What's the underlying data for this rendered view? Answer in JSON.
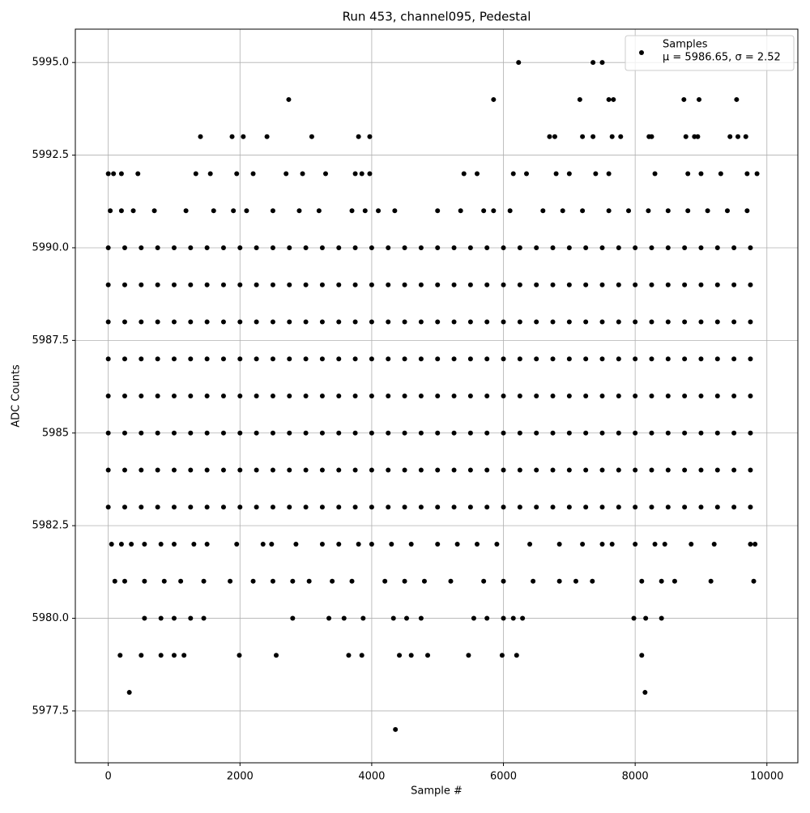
{
  "chart_data": {
    "type": "scatter",
    "title": "Run 453, channel095, Pedestal",
    "xlabel": "Sample #",
    "ylabel": "ADC Counts",
    "annotation": "μ = 5986.65, σ = 2.52",
    "xlim": [
      -500,
      10470
    ],
    "ylim": [
      5976.1,
      5995.9
    ],
    "xticks": [
      0,
      2000,
      4000,
      6000,
      8000,
      10000
    ],
    "yticks": [
      5977.5,
      {
        "value": 5980,
        "label": "5980.0"
      },
      5982.5,
      5985,
      {
        "value": 5987.5,
        "label": "5987.5"
      },
      {
        "value": 5990,
        "label": "5990.0"
      },
      5992.5,
      {
        "value": 5995,
        "label": "5995.0"
      }
    ],
    "grid": true,
    "legend": "upper right",
    "series": [
      {
        "name": "Samples",
        "color": "#000000",
        "x": [
          0,
          250,
          500,
          750,
          1000,
          1250,
          1500,
          1750,
          2000,
          2250,
          2500,
          2750,
          3000,
          3250,
          3500,
          3750,
          4000,
          4250,
          4500,
          4750,
          5000,
          5250,
          5500,
          5750,
          6000,
          6250,
          6500,
          6750,
          7000,
          7250,
          7500,
          7750,
          8000,
          8250,
          8500,
          8750,
          9000,
          9250,
          9500,
          9750,
          0,
          250,
          500,
          750,
          1000,
          1250,
          1500,
          1750,
          2000,
          2250,
          2500,
          2750,
          3000,
          3250,
          3500,
          3750,
          4000,
          4250,
          4500,
          4750,
          5000,
          5250,
          5500,
          5750,
          6000,
          6250,
          6500,
          6750,
          7000,
          7250,
          7500,
          7750,
          8000,
          8250,
          8500,
          8750,
          9000,
          9250,
          9500,
          9750,
          0,
          250,
          500,
          750,
          1000,
          1250,
          1500,
          1750,
          2000,
          2250,
          2500,
          2750,
          3000,
          3250,
          3500,
          3750,
          4000,
          4250,
          4500,
          4750,
          5000,
          5250,
          5500,
          5750,
          6000,
          6250,
          6500,
          6750,
          7000,
          7250,
          7500,
          7750,
          8000,
          8250,
          8500,
          8750,
          9000,
          9250,
          9500,
          9750,
          0,
          250,
          500,
          750,
          1000,
          1250,
          1500,
          1750,
          2000,
          2250,
          2500,
          2750,
          3000,
          3250,
          3500,
          3750,
          4000,
          4250,
          4500,
          4750,
          5000,
          5250,
          5500,
          5750,
          6000,
          6250,
          6500,
          6750,
          7000,
          7250,
          7500,
          7750,
          8000,
          8250,
          8500,
          8750,
          9000,
          9250,
          9500,
          9750,
          0,
          250,
          500,
          750,
          1000,
          1250,
          1500,
          1750,
          2000,
          2250,
          2500,
          2750,
          3000,
          3250,
          3500,
          3750,
          4000,
          4250,
          4500,
          4750,
          5000,
          5250,
          5500,
          5750,
          6000,
          6250,
          6500,
          6750,
          7000,
          7250,
          7500,
          7750,
          8000,
          8250,
          8500,
          8750,
          9000,
          9250,
          9500,
          9750,
          0,
          250,
          500,
          750,
          1000,
          1250,
          1500,
          1750,
          2000,
          2250,
          2500,
          2750,
          3000,
          3250,
          3500,
          3750,
          4000,
          4250,
          4500,
          4750,
          5000,
          5250,
          5500,
          5750,
          6000,
          6250,
          6500,
          6750,
          7000,
          7250,
          7500,
          7750,
          8000,
          8250,
          8500,
          8750,
          9000,
          9250,
          9500,
          9750,
          0,
          250,
          500,
          750,
          1000,
          1250,
          1500,
          1750,
          2000,
          2250,
          2500,
          2750,
          3000,
          3250,
          3500,
          3750,
          4000,
          4250,
          4500,
          4750,
          5000,
          5250,
          5500,
          5750,
          6000,
          6250,
          6500,
          6750,
          7000,
          7250,
          7500,
          7750,
          8000,
          8250,
          8500,
          8750,
          9000,
          9250,
          9500,
          9750,
          0,
          250,
          500,
          750,
          1000,
          1250,
          1500,
          1750,
          2000,
          2250,
          2500,
          2750,
          3000,
          3250,
          3500,
          3750,
          4000,
          4250,
          4500,
          4750,
          5000,
          5250,
          5500,
          5750,
          6000,
          6250,
          6500,
          6750,
          7000,
          7250,
          7500,
          7750,
          8000,
          8250,
          8500,
          8750,
          9000,
          9250,
          9500,
          9750,
          6230,
          7360,
          7500,
          2740,
          5850,
          7160,
          7600,
          7670,
          8740,
          8970,
          9540,
          1400,
          1880,
          2050,
          2410,
          3090,
          3800,
          3970,
          6700,
          6780,
          7200,
          7360,
          7650,
          7780,
          8210,
          8250,
          8770,
          8900,
          8950,
          9440,
          9560,
          9680,
          0,
          80,
          200,
          450,
          1330,
          1550,
          1950,
          2200,
          2700,
          2950,
          3300,
          3750,
          3850,
          3970,
          5400,
          5600,
          6150,
          6350,
          6800,
          7000,
          7400,
          7600,
          8300,
          8800,
          9000,
          9300,
          9700,
          9850,
          30,
          200,
          380,
          700,
          1180,
          1600,
          1900,
          2100,
          2500,
          2900,
          3200,
          3700,
          3900,
          4100,
          4350,
          5000,
          5350,
          5700,
          5850,
          6100,
          6600,
          6900,
          7200,
          7600,
          7900,
          8200,
          8500,
          8800,
          9100,
          9400,
          9700,
          50,
          200,
          350,
          550,
          800,
          1000,
          1300,
          1500,
          1950,
          2350,
          2480,
          2850,
          3250,
          3500,
          3800,
          4000,
          4300,
          4600,
          5000,
          5300,
          5600,
          5900,
          6400,
          6850,
          7200,
          7500,
          7650,
          8000,
          8300,
          8450,
          8850,
          9200,
          9750,
          9820,
          100,
          250,
          550,
          850,
          1100,
          1450,
          1850,
          2200,
          2500,
          2800,
          3050,
          3400,
          3700,
          4200,
          4500,
          4800,
          5200,
          5700,
          6000,
          6450,
          6850,
          7100,
          7350,
          8100,
          8400,
          8600,
          9150,
          9800,
          550,
          800,
          1000,
          1250,
          1450,
          2800,
          3350,
          3580,
          3870,
          4330,
          4530,
          4750,
          5550,
          5750,
          6000,
          6150,
          6290,
          7980,
          8160,
          8400,
          180,
          500,
          800,
          1000,
          1150,
          1990,
          2550,
          3650,
          3850,
          4420,
          4600,
          4850,
          5470,
          5980,
          6200,
          8100,
          320,
          8150,
          4360
        ],
        "values": [
          5983,
          5983,
          5983,
          5983,
          5983,
          5983,
          5983,
          5983,
          5983,
          5983,
          5983,
          5983,
          5983,
          5983,
          5983,
          5983,
          5983,
          5983,
          5983,
          5983,
          5983,
          5983,
          5983,
          5983,
          5983,
          5983,
          5983,
          5983,
          5983,
          5983,
          5983,
          5983,
          5983,
          5983,
          5983,
          5983,
          5983,
          5983,
          5983,
          5983,
          5984,
          5984,
          5984,
          5984,
          5984,
          5984,
          5984,
          5984,
          5984,
          5984,
          5984,
          5984,
          5984,
          5984,
          5984,
          5984,
          5984,
          5984,
          5984,
          5984,
          5984,
          5984,
          5984,
          5984,
          5984,
          5984,
          5984,
          5984,
          5984,
          5984,
          5984,
          5984,
          5984,
          5984,
          5984,
          5984,
          5984,
          5984,
          5984,
          5984,
          5985,
          5985,
          5985,
          5985,
          5985,
          5985,
          5985,
          5985,
          5985,
          5985,
          5985,
          5985,
          5985,
          5985,
          5985,
          5985,
          5985,
          5985,
          5985,
          5985,
          5985,
          5985,
          5985,
          5985,
          5985,
          5985,
          5985,
          5985,
          5985,
          5985,
          5985,
          5985,
          5985,
          5985,
          5985,
          5985,
          5985,
          5985,
          5985,
          5985,
          5986,
          5986,
          5986,
          5986,
          5986,
          5986,
          5986,
          5986,
          5986,
          5986,
          5986,
          5986,
          5986,
          5986,
          5986,
          5986,
          5986,
          5986,
          5986,
          5986,
          5986,
          5986,
          5986,
          5986,
          5986,
          5986,
          5986,
          5986,
          5986,
          5986,
          5986,
          5986,
          5986,
          5986,
          5986,
          5986,
          5986,
          5986,
          5986,
          5986,
          5987,
          5987,
          5987,
          5987,
          5987,
          5987,
          5987,
          5987,
          5987,
          5987,
          5987,
          5987,
          5987,
          5987,
          5987,
          5987,
          5987,
          5987,
          5987,
          5987,
          5987,
          5987,
          5987,
          5987,
          5987,
          5987,
          5987,
          5987,
          5987,
          5987,
          5987,
          5987,
          5987,
          5987,
          5987,
          5987,
          5987,
          5987,
          5987,
          5987,
          5988,
          5988,
          5988,
          5988,
          5988,
          5988,
          5988,
          5988,
          5988,
          5988,
          5988,
          5988,
          5988,
          5988,
          5988,
          5988,
          5988,
          5988,
          5988,
          5988,
          5988,
          5988,
          5988,
          5988,
          5988,
          5988,
          5988,
          5988,
          5988,
          5988,
          5988,
          5988,
          5988,
          5988,
          5988,
          5988,
          5988,
          5988,
          5988,
          5988,
          5989,
          5989,
          5989,
          5989,
          5989,
          5989,
          5989,
          5989,
          5989,
          5989,
          5989,
          5989,
          5989,
          5989,
          5989,
          5989,
          5989,
          5989,
          5989,
          5989,
          5989,
          5989,
          5989,
          5989,
          5989,
          5989,
          5989,
          5989,
          5989,
          5989,
          5989,
          5989,
          5989,
          5989,
          5989,
          5989,
          5989,
          5989,
          5989,
          5989,
          5990,
          5990,
          5990,
          5990,
          5990,
          5990,
          5990,
          5990,
          5990,
          5990,
          5990,
          5990,
          5990,
          5990,
          5990,
          5990,
          5990,
          5990,
          5990,
          5990,
          5990,
          5990,
          5990,
          5990,
          5990,
          5990,
          5990,
          5990,
          5990,
          5990,
          5990,
          5990,
          5990,
          5990,
          5990,
          5990,
          5990,
          5990,
          5990,
          5990,
          5995,
          5995,
          5995,
          5994,
          5994,
          5994,
          5994,
          5994,
          5994,
          5994,
          5994,
          5993,
          5993,
          5993,
          5993,
          5993,
          5993,
          5993,
          5993,
          5993,
          5993,
          5993,
          5993,
          5993,
          5993,
          5993,
          5993,
          5993,
          5993,
          5993,
          5993,
          5993,
          5992,
          5992,
          5992,
          5992,
          5992,
          5992,
          5992,
          5992,
          5992,
          5992,
          5992,
          5992,
          5992,
          5992,
          5992,
          5992,
          5992,
          5992,
          5992,
          5992,
          5992,
          5992,
          5992,
          5992,
          5992,
          5992,
          5992,
          5992,
          5991,
          5991,
          5991,
          5991,
          5991,
          5991,
          5991,
          5991,
          5991,
          5991,
          5991,
          5991,
          5991,
          5991,
          5991,
          5991,
          5991,
          5991,
          5991,
          5991,
          5991,
          5991,
          5991,
          5991,
          5991,
          5991,
          5991,
          5991,
          5991,
          5991,
          5991,
          5982,
          5982,
          5982,
          5982,
          5982,
          5982,
          5982,
          5982,
          5982,
          5982,
          5982,
          5982,
          5982,
          5982,
          5982,
          5982,
          5982,
          5982,
          5982,
          5982,
          5982,
          5982,
          5982,
          5982,
          5982,
          5982,
          5982,
          5982,
          5982,
          5982,
          5982,
          5982,
          5982,
          5982,
          5981,
          5981,
          5981,
          5981,
          5981,
          5981,
          5981,
          5981,
          5981,
          5981,
          5981,
          5981,
          5981,
          5981,
          5981,
          5981,
          5981,
          5981,
          5981,
          5981,
          5981,
          5981,
          5981,
          5981,
          5981,
          5981,
          5981,
          5981,
          5980,
          5980,
          5980,
          5980,
          5980,
          5980,
          5980,
          5980,
          5980,
          5980,
          5980,
          5980,
          5980,
          5980,
          5980,
          5980,
          5980,
          5980,
          5980,
          5980,
          5979,
          5979,
          5979,
          5979,
          5979,
          5979,
          5979,
          5979,
          5979,
          5979,
          5979,
          5979,
          5979,
          5979,
          5979,
          5979,
          5978,
          5978,
          5977
        ]
      }
    ]
  }
}
